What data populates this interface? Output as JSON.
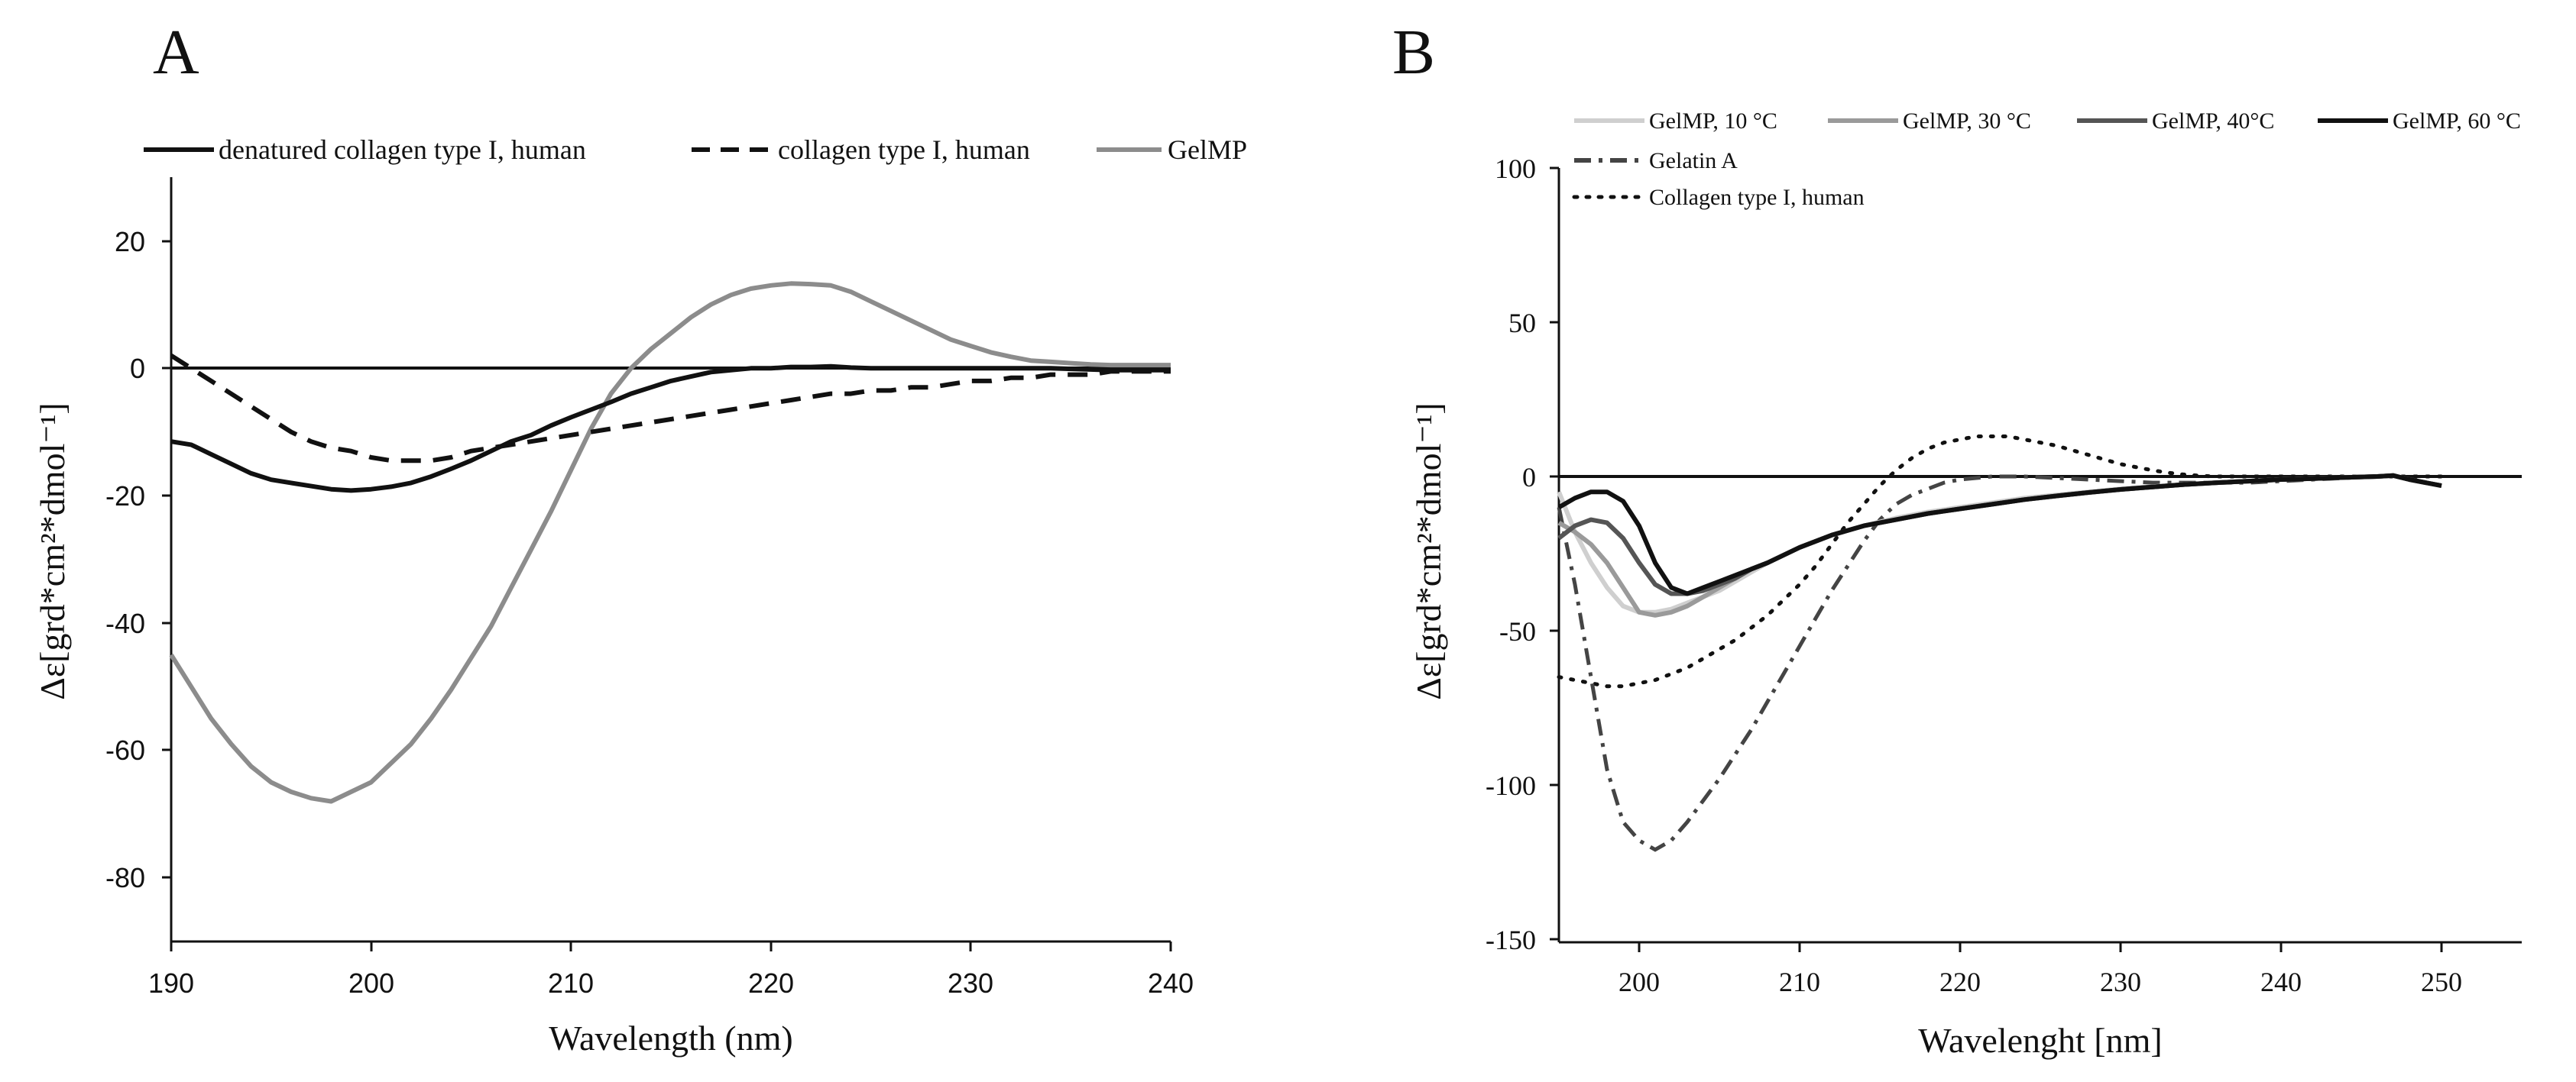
{
  "chart_data": [
    {
      "panel": "A",
      "type": "line",
      "xlabel": "Wavelength (nm)",
      "ylabel": "Δε[grd*cm²*dmol⁻¹]",
      "xlim": [
        190,
        240
      ],
      "ylim": [
        -90,
        30
      ],
      "xticks": [
        190,
        200,
        210,
        220,
        230,
        240
      ],
      "yticks": [
        20,
        0,
        -20,
        -40,
        -60,
        -80
      ],
      "zero_line": true,
      "legend_position": "top",
      "series": [
        {
          "name": "denatured collagen type I, human",
          "color": "#111111",
          "style": "solid",
          "x": [
            190,
            191,
            192,
            193,
            194,
            195,
            196,
            197,
            198,
            199,
            200,
            201,
            202,
            203,
            204,
            205,
            206,
            207,
            208,
            209,
            210,
            211,
            212,
            213,
            214,
            215,
            216,
            217,
            218,
            219,
            220,
            221,
            222,
            223,
            224,
            225,
            226,
            227,
            228,
            229,
            230,
            231,
            232,
            233,
            234,
            235,
            236,
            237,
            238,
            239,
            240
          ],
          "y": [
            -11.5,
            -12,
            -13.5,
            -15,
            -16.5,
            -17.5,
            -18,
            -18.5,
            -19,
            -19.2,
            -19,
            -18.6,
            -18,
            -17,
            -15.8,
            -14.5,
            -13,
            -11.5,
            -10.5,
            -9,
            -7.7,
            -6.5,
            -5.3,
            -4,
            -3,
            -2,
            -1.3,
            -0.6,
            -0.3,
            0,
            0,
            0.2,
            0.2,
            0.3,
            0.1,
            0,
            0,
            0,
            0,
            0,
            0,
            0,
            0,
            0,
            0,
            -0.1,
            -0.2,
            -0.3,
            -0.3,
            -0.3,
            -0.3
          ]
        },
        {
          "name": "collagen type I, human",
          "color": "#111111",
          "style": "dashed",
          "x": [
            190,
            191,
            192,
            193,
            194,
            195,
            196,
            197,
            198,
            199,
            200,
            201,
            202,
            203,
            204,
            205,
            206,
            207,
            208,
            209,
            210,
            211,
            212,
            213,
            214,
            215,
            216,
            217,
            218,
            219,
            220,
            221,
            222,
            223,
            224,
            225,
            226,
            227,
            228,
            229,
            230,
            231,
            232,
            233,
            234,
            235,
            236,
            237,
            238,
            239,
            240
          ],
          "y": [
            -45,
            -50,
            -55,
            -59,
            -62.5,
            -65,
            -66.5,
            -67.5,
            -68,
            -66.5,
            -65,
            -62,
            -59,
            -55,
            -50.5,
            -45.5,
            -40.5,
            -34.5,
            -28.5,
            -22.5,
            -16,
            -9.5,
            -4,
            0,
            3,
            5.5,
            8,
            10,
            11.5,
            12.5,
            13,
            13.3,
            13.2,
            13,
            12,
            10.5,
            9,
            7.5,
            6,
            4.5,
            3.5,
            2.5,
            1.8,
            1.2,
            1,
            0.8,
            0.6,
            0.5,
            0.5,
            0.5,
            0.5
          ]
        },
        {
          "name": "GelMP",
          "color": "#8c8c8c",
          "style": "solid",
          "x": [
            190,
            191,
            192,
            193,
            194,
            195,
            196,
            197,
            198,
            199,
            200,
            201,
            202,
            203,
            204,
            205,
            206,
            207,
            208,
            209,
            210,
            211,
            212,
            213,
            214,
            215,
            216,
            217,
            218,
            219,
            220,
            221,
            222,
            223,
            224,
            225,
            226,
            227,
            228,
            229,
            230,
            231,
            232,
            233,
            234,
            235,
            236,
            237,
            238,
            239,
            240
          ],
          "y": [
            2,
            0,
            -2,
            -4,
            -6,
            -8,
            -10,
            -11.5,
            -12.5,
            -13,
            -14,
            -14.5,
            -14.5,
            -14.5,
            -14,
            -13,
            -12.5,
            -12,
            -11.5,
            -11,
            -10.5,
            -10,
            -9.5,
            -9,
            -8.5,
            -8,
            -7.5,
            -7,
            -6.5,
            -6,
            -5.5,
            -5,
            -4.5,
            -4,
            -4,
            -3.5,
            -3.5,
            -3,
            -3,
            -2.5,
            -2,
            -2,
            -1.5,
            -1.5,
            -1,
            -1,
            -1,
            -0.5,
            -0.5,
            -0.5,
            -0.5
          ]
        }
      ]
    },
    {
      "panel": "B",
      "type": "line",
      "xlabel": "Wavelenght [nm]",
      "ylabel": "Δε[grd*cm²*dmol⁻¹]",
      "xlim": [
        195,
        255
      ],
      "ylim": [
        -150,
        100
      ],
      "xticks": [
        200,
        210,
        220,
        230,
        240,
        250
      ],
      "yticks": [
        100,
        50,
        0,
        -50,
        -100,
        -150
      ],
      "zero_line": true,
      "legend_position": "top",
      "series": [
        {
          "name": "GelMP, 10 °C",
          "color": "#cfcfcf",
          "style": "solid",
          "x": [
            195,
            196,
            197,
            198,
            199,
            200,
            201,
            202,
            203,
            204,
            205,
            206,
            207,
            208,
            210,
            212,
            214,
            216,
            218,
            220,
            222,
            224,
            226,
            228,
            230,
            232,
            234,
            236,
            238,
            240,
            242,
            244,
            246,
            247,
            248,
            250
          ],
          "y": [
            -5,
            -18,
            -28,
            -36,
            -42,
            -44,
            -44,
            -43,
            -41,
            -39,
            -37,
            -34,
            -31,
            -28,
            -23,
            -19,
            -16,
            -13.5,
            -11.5,
            -10,
            -8.5,
            -7,
            -6,
            -5,
            -4,
            -3.3,
            -2.6,
            -2,
            -1.5,
            -1,
            -0.7,
            -0.3,
            0,
            0.3,
            -1,
            -3
          ]
        },
        {
          "name": "GelMP, 30 °C",
          "color": "#9a9a9a",
          "style": "solid",
          "x": [
            195,
            196,
            197,
            198,
            199,
            200,
            201,
            202,
            203,
            204,
            205,
            206,
            207,
            208,
            210,
            212,
            214,
            216,
            218,
            220,
            222,
            224,
            226,
            228,
            230,
            232,
            234,
            236,
            238,
            240,
            242,
            244,
            246,
            247,
            248,
            250
          ],
          "y": [
            -15,
            -18,
            -22,
            -28,
            -36,
            -44,
            -45,
            -44,
            -42,
            -39,
            -36,
            -33,
            -30,
            -28,
            -23,
            -19,
            -16,
            -14,
            -12,
            -10.5,
            -9,
            -7.5,
            -6.3,
            -5.2,
            -4.2,
            -3.4,
            -2.6,
            -2,
            -1.5,
            -1,
            -0.7,
            -0.3,
            0,
            0.3,
            -1,
            -3
          ]
        },
        {
          "name": "GelMP, 40°C",
          "color": "#555555",
          "style": "solid",
          "x": [
            195,
            196,
            197,
            198,
            199,
            200,
            201,
            202,
            203,
            204,
            205,
            206,
            207,
            208,
            210,
            212,
            214,
            216,
            218,
            220,
            222,
            224,
            226,
            228,
            230,
            232,
            234,
            236,
            238,
            240,
            242,
            244,
            246,
            247,
            248,
            250
          ],
          "y": [
            -20,
            -16,
            -14,
            -15,
            -20,
            -28,
            -35,
            -38,
            -38,
            -37,
            -35,
            -33,
            -30,
            -28,
            -23,
            -19,
            -16,
            -14,
            -12,
            -10.5,
            -9,
            -7.5,
            -6.3,
            -5.2,
            -4.2,
            -3.4,
            -2.6,
            -2,
            -1.5,
            -1,
            -0.7,
            -0.3,
            0,
            0.3,
            -1,
            -3
          ]
        },
        {
          "name": "GelMP, 60 °C",
          "color": "#111111",
          "style": "solid",
          "x": [
            195,
            196,
            197,
            198,
            199,
            200,
            201,
            202,
            203,
            204,
            205,
            206,
            207,
            208,
            210,
            212,
            214,
            216,
            218,
            220,
            222,
            224,
            226,
            228,
            230,
            232,
            234,
            236,
            238,
            240,
            242,
            244,
            246,
            247,
            248,
            250
          ],
          "y": [
            -10,
            -7,
            -5,
            -5,
            -8,
            -16,
            -28,
            -36,
            -38,
            -36,
            -34,
            -32,
            -30,
            -28,
            -23,
            -19,
            -16,
            -14,
            -12,
            -10.5,
            -9,
            -7.5,
            -6.3,
            -5.2,
            -4.2,
            -3.4,
            -2.6,
            -2,
            -1.5,
            -1,
            -0.7,
            -0.3,
            0,
            0.3,
            -1,
            -3
          ]
        },
        {
          "name": "Gelatin A",
          "color": "#444444",
          "style": "dashdot",
          "x": [
            195,
            196,
            197,
            198,
            199,
            200,
            201,
            202,
            203,
            204,
            205,
            206,
            207,
            208,
            209,
            210,
            211,
            212,
            213,
            214,
            215,
            216,
            217,
            218,
            219,
            220,
            222,
            224,
            226,
            228,
            230,
            232,
            234,
            236,
            238,
            240,
            242,
            244,
            246,
            247,
            248,
            250
          ],
          "y": [
            -10,
            -35,
            -65,
            -95,
            -112,
            -118,
            -121,
            -118,
            -112,
            -105,
            -98,
            -90,
            -82,
            -73,
            -64,
            -55,
            -46,
            -37,
            -29,
            -21,
            -14,
            -9,
            -6,
            -4,
            -2,
            -1,
            0,
            0,
            -0.5,
            -1,
            -1.5,
            -2,
            -2,
            -2,
            -2,
            -1.5,
            -1,
            -0.5,
            0,
            0.3,
            -1,
            -3
          ]
        },
        {
          "name": "Collagen type I, human",
          "color": "#111111",
          "style": "dotted",
          "x": [
            195,
            196,
            197,
            198,
            199,
            200,
            201,
            202,
            203,
            204,
            205,
            206,
            207,
            208,
            209,
            210,
            211,
            212,
            213,
            214,
            215,
            216,
            217,
            218,
            219,
            220,
            221,
            222,
            223,
            224,
            225,
            226,
            227,
            228,
            229,
            230,
            231,
            232,
            233,
            234,
            235,
            236,
            238,
            240,
            245,
            250
          ],
          "y": [
            -65,
            -66,
            -67,
            -68,
            -68,
            -67,
            -66,
            -64,
            -62,
            -59,
            -56,
            -53,
            -49,
            -45,
            -40,
            -35,
            -29,
            -22,
            -15,
            -9,
            -3,
            2,
            6,
            9,
            11,
            12,
            13,
            13,
            13,
            12,
            11,
            10,
            8.5,
            7,
            5.5,
            4,
            3,
            2,
            1.2,
            0.6,
            0.2,
            0,
            0,
            0,
            0,
            0
          ]
        }
      ]
    }
  ],
  "panelA": {
    "letter": "A",
    "xlabel": "Wavelength (nm)",
    "ylabel": "Δε[grd*cm²*dmol⁻¹]",
    "legend": [
      "denatured collagen type I, human",
      "collagen type I, human",
      "GelMP"
    ]
  },
  "panelB": {
    "letter": "B",
    "xlabel": "Wavelenght [nm]",
    "ylabel": "Δε[grd*cm²*dmol⁻¹]",
    "legend": [
      "GelMP, 10 °C",
      "GelMP, 30 °C",
      "GelMP, 40°C",
      "GelMP, 60 °C",
      "Gelatin A",
      "Collagen type I, human"
    ]
  }
}
